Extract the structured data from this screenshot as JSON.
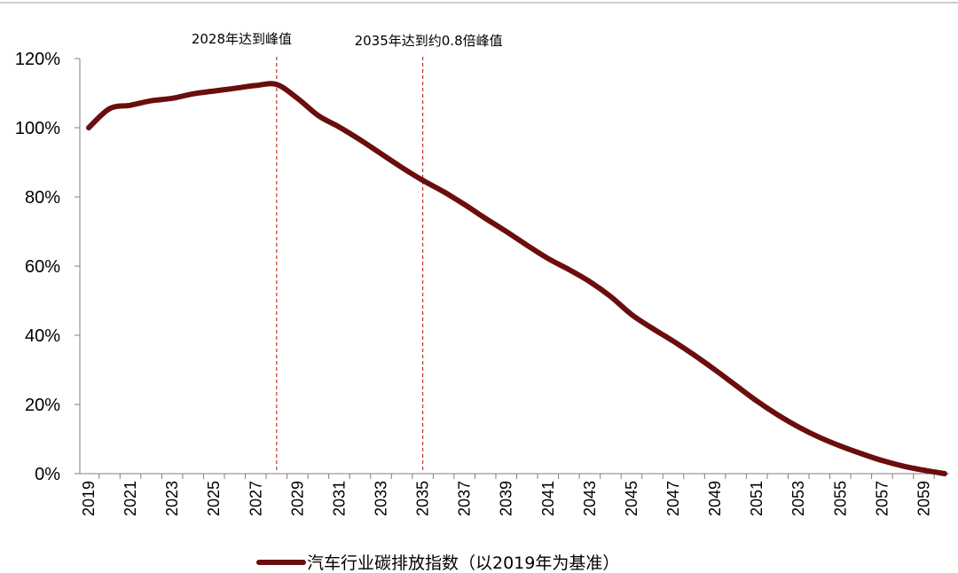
{
  "chart_data": {
    "type": "line",
    "x": [
      2019,
      2020,
      2021,
      2022,
      2023,
      2024,
      2025,
      2026,
      2027,
      2028,
      2029,
      2030,
      2031,
      2032,
      2033,
      2034,
      2035,
      2036,
      2037,
      2038,
      2039,
      2040,
      2041,
      2042,
      2043,
      2044,
      2045,
      2046,
      2047,
      2048,
      2049,
      2050,
      2051,
      2052,
      2053,
      2054,
      2055,
      2056,
      2057,
      2058,
      2059,
      2060
    ],
    "series": [
      {
        "name": "汽车行业碳排放指数（以2019年为基准）",
        "color": "#6b0d0d",
        "values": [
          100,
          105.5,
          106.5,
          107.8,
          108.5,
          109.8,
          110.6,
          111.4,
          112.2,
          112.5,
          108.5,
          103.5,
          100.2,
          96.5,
          92.5,
          88.5,
          84.8,
          81.5,
          77.8,
          73.8,
          70,
          66,
          62.2,
          59,
          55.5,
          51.2,
          46,
          42,
          38.3,
          34.3,
          30,
          25.5,
          21,
          17,
          13.5,
          10.5,
          8,
          5.8,
          3.8,
          2.2,
          1,
          0
        ]
      }
    ],
    "x_tick_labels": [
      "2019",
      "2021",
      "2023",
      "2025",
      "2027",
      "2029",
      "2031",
      "2033",
      "2035",
      "2037",
      "2039",
      "2041",
      "2043",
      "2045",
      "2047",
      "2049",
      "2051",
      "2053",
      "2055",
      "2057",
      "2059"
    ],
    "y_tick_labels": [
      "0%",
      "20%",
      "40%",
      "60%",
      "80%",
      "100%",
      "120%"
    ],
    "ylim": [
      0,
      120
    ],
    "xlim": [
      2019,
      2060
    ],
    "grid": false,
    "legend_position": "bottom",
    "annotations": [
      {
        "x": 2028,
        "text": "2028年达到峰值",
        "line_color": "#c0392b",
        "line_style": "dashed"
      },
      {
        "x": 2035,
        "text": "2035年达到约0.8倍峰值",
        "line_color": "#c0392b",
        "line_style": "dashed"
      }
    ],
    "title": "",
    "xlabel": "",
    "ylabel": ""
  }
}
